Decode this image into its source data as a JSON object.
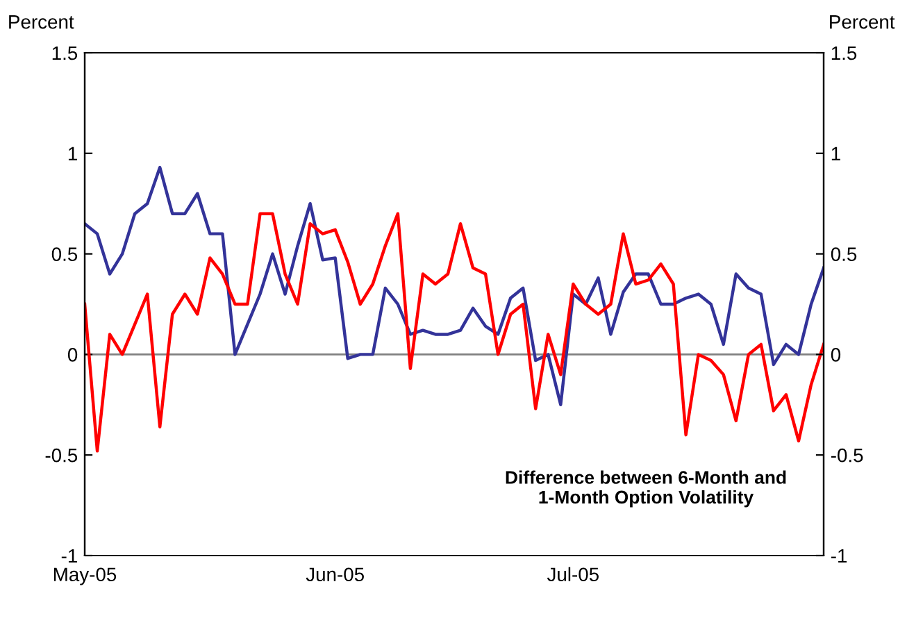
{
  "chart_data": {
    "type": "line",
    "ylabel": "Percent",
    "y2label": "Percent",
    "categories": [
      "May-05",
      null,
      null,
      null,
      null,
      null,
      null,
      null,
      null,
      null,
      null,
      null,
      null,
      null,
      null,
      null,
      null,
      null,
      null,
      null,
      "Jun-05",
      null,
      null,
      null,
      null,
      null,
      null,
      null,
      null,
      null,
      null,
      null,
      null,
      null,
      null,
      null,
      null,
      null,
      null,
      "Jul-05",
      null,
      null,
      null,
      null,
      null,
      null,
      null,
      null,
      null,
      null,
      null,
      null,
      null,
      null,
      null,
      null,
      null,
      null,
      null,
      null
    ],
    "series": [
      {
        "color": "#333399",
        "values": [
          0.65,
          0.6,
          0.4,
          0.5,
          0.7,
          0.75,
          0.93,
          0.7,
          0.7,
          0.8,
          0.6,
          0.6,
          0,
          0.15,
          0.3,
          0.5,
          0.3,
          0.54,
          0.75,
          0.47,
          0.48,
          -0.02,
          0,
          0,
          0.33,
          0.25,
          0.1,
          0.12,
          0.1,
          0.1,
          0.12,
          0.23,
          0.14,
          0.1,
          0.28,
          0.33,
          -0.03,
          0,
          -0.25,
          0.3,
          0.25,
          0.38,
          0.1,
          0.31,
          0.4,
          0.4,
          0.25,
          0.25,
          0.28,
          0.3,
          0.25,
          0.05,
          0.4,
          0.33,
          0.3,
          -0.05,
          0.05,
          0,
          0.25,
          0.43
        ]
      },
      {
        "color": "#ff0000",
        "values": [
          0.25,
          -0.48,
          0.1,
          0,
          0.15,
          0.3,
          -0.36,
          0.2,
          0.3,
          0.2,
          0.48,
          0.4,
          0.25,
          0.25,
          0.7,
          0.7,
          0.4,
          0.25,
          0.65,
          0.6,
          0.62,
          0.46,
          0.25,
          0.35,
          0.54,
          0.7,
          -0.07,
          0.4,
          0.35,
          0.4,
          0.65,
          0.43,
          0.4,
          0,
          0.2,
          0.25,
          -0.27,
          0.1,
          -0.1,
          0.35,
          0.25,
          0.2,
          0.25,
          0.6,
          0.35,
          0.37,
          0.45,
          0.35,
          -0.4,
          0,
          -0.03,
          -0.1,
          -0.33,
          0,
          0.05,
          -0.28,
          -0.2,
          -0.43,
          -0.15,
          0.05
        ]
      }
    ],
    "ylim": [
      -1,
      1.5
    ],
    "yticks": [
      1.5,
      1,
      0.5,
      0,
      -0.5,
      -1
    ],
    "y2lim": [
      -1,
      1.5
    ],
    "y2ticks": [
      1.5,
      1,
      0.5,
      0,
      -0.5,
      -1
    ],
    "ref_lines": [
      {
        "axis": "y",
        "value": 0,
        "color": "#808080"
      }
    ],
    "annotations": [
      "Difference between 6-Month and\n1-Month Option Volatility"
    ],
    "marker": "none",
    "line_style": "solid"
  }
}
